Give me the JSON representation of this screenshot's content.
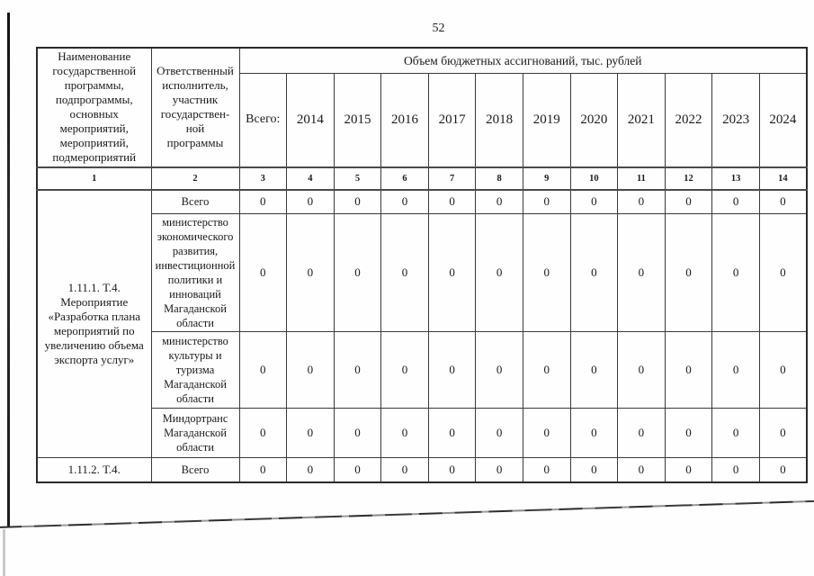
{
  "page": {
    "number": "52"
  },
  "table": {
    "header": {
      "col1": "Наименование\nгосударственной\nпрограммы,\nподпрограммы,\nосновных\nмероприятий,\nмероприятий,\nподмероприятий",
      "col2": "Ответственный\nисполнитель,\nучастник\nгосударствен-\nной\nпрограммы",
      "budget_span": "Объем бюджетных ассигнований, тыс. рублей",
      "total_label": "Всего:",
      "years": [
        "2014",
        "2015",
        "2016",
        "2017",
        "2018",
        "2019",
        "2020",
        "2021",
        "2022",
        "2023",
        "2024"
      ],
      "column_numbers": [
        "1",
        "2",
        "3",
        "4",
        "5",
        "6",
        "7",
        "8",
        "9",
        "10",
        "11",
        "12",
        "13",
        "14"
      ]
    },
    "groups": [
      {
        "program": "1.11.1. Т.4.\nМероприятие\n«Разработка плана\nмероприятий по\nувеличению объема\nэкспорта услуг»",
        "rows": [
          {
            "executor": "Всего",
            "values": [
              "0",
              "0",
              "0",
              "0",
              "0",
              "0",
              "0",
              "0",
              "0",
              "0",
              "0",
              "0"
            ]
          },
          {
            "executor": "министерство\nэкономического\nразвития,\nинвестиционной\nполитики и\nинноваций\nМагаданской\nобласти",
            "values": [
              "0",
              "0",
              "0",
              "0",
              "0",
              "0",
              "0",
              "0",
              "0",
              "0",
              "0",
              "0"
            ]
          },
          {
            "executor": "министерство\nкультуры и\nтуризма\nМагаданской\nобласти",
            "values": [
              "0",
              "0",
              "0",
              "0",
              "0",
              "0",
              "0",
              "0",
              "0",
              "0",
              "0",
              "0"
            ]
          },
          {
            "executor": "Миндортранс\nМагаданской\nобласти",
            "values": [
              "0",
              "0",
              "0",
              "0",
              "0",
              "0",
              "0",
              "0",
              "0",
              "0",
              "0",
              "0"
            ]
          }
        ]
      },
      {
        "program": "1.11.2. Т.4.",
        "rows": [
          {
            "executor": "Всего",
            "values": [
              "0",
              "0",
              "0",
              "0",
              "0",
              "0",
              "0",
              "0",
              "0",
              "0",
              "0",
              "0"
            ]
          }
        ]
      }
    ]
  }
}
